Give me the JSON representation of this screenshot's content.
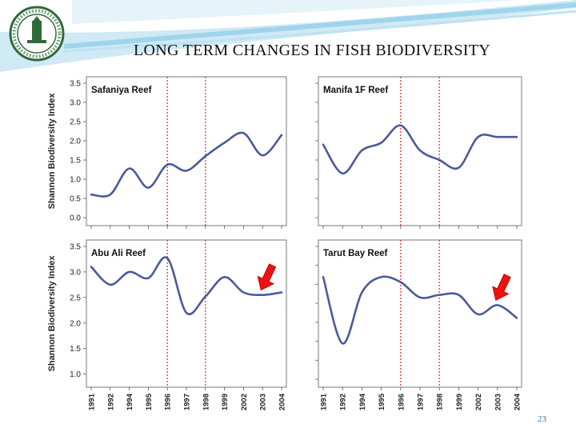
{
  "slide": {
    "title": "LONG TERM CHANGES IN FISH BIODIVERSITY",
    "page_number": "23"
  },
  "colors": {
    "line": "#4a5a9a",
    "marker_line": "#e03030",
    "arrow": "#ee1111",
    "banner": "#9fd4ec"
  },
  "chart_data": [
    {
      "type": "line",
      "title": "Safaniya Reef",
      "ylabel": "Shannon Biodiversity Index",
      "ylim": [
        0,
        3.5
      ],
      "yticks": [
        "0.0",
        "0.5",
        "1.0",
        "1.5",
        "2.0",
        "2.5",
        "3.0",
        "3.5"
      ],
      "x": [
        "1991",
        "1992",
        "1994",
        "1995",
        "1996",
        "1997",
        "1998",
        "1999",
        "2002",
        "2003",
        "2004"
      ],
      "values": [
        0.6,
        0.6,
        1.28,
        0.78,
        1.38,
        1.22,
        1.6,
        1.95,
        2.2,
        1.62,
        2.15
      ],
      "markers": [
        "1996",
        "1998"
      ]
    },
    {
      "type": "line",
      "title": "Manifa 1F Reef",
      "ylabel": "",
      "ylim": [
        0,
        3.5
      ],
      "yticks": [],
      "x": [
        "1991",
        "1992",
        "1994",
        "1995",
        "1996",
        "1997",
        "1998",
        "1999",
        "2002",
        "2003",
        "2004"
      ],
      "values": [
        1.9,
        1.15,
        1.75,
        1.95,
        2.4,
        1.75,
        1.5,
        1.3,
        2.1,
        2.1,
        2.1
      ],
      "markers": [
        "1996",
        "1998"
      ]
    },
    {
      "type": "line",
      "title": "Abu Ali Reef",
      "ylabel": "Shannon Biodiversity Index",
      "ylim": [
        0.9,
        3.5
      ],
      "yticks": [
        "1.0",
        "1.5",
        "2.0",
        "2.5",
        "3.0",
        "3.5"
      ],
      "x": [
        "1991",
        "1992",
        "1994",
        "1995",
        "1996",
        "1997",
        "1998",
        "1999",
        "2002",
        "2003",
        "2004"
      ],
      "values": [
        3.1,
        2.75,
        3.0,
        2.88,
        3.27,
        2.2,
        2.52,
        2.9,
        2.6,
        2.55,
        2.6
      ],
      "markers": [
        "1996",
        "1998"
      ],
      "arrow_at": "2003"
    },
    {
      "type": "line",
      "title": "Tarut Bay Reef",
      "ylabel": "",
      "ylim": [
        0.9,
        3.5
      ],
      "yticks": [],
      "x": [
        "1991",
        "1992",
        "1994",
        "1995",
        "1996",
        "1997",
        "1998",
        "1999",
        "2002",
        "2003",
        "2004"
      ],
      "values": [
        2.9,
        1.6,
        2.6,
        2.9,
        2.8,
        2.5,
        2.55,
        2.55,
        2.17,
        2.35,
        2.1
      ],
      "markers": [
        "1996",
        "1998"
      ],
      "arrow_at": "2003"
    }
  ]
}
